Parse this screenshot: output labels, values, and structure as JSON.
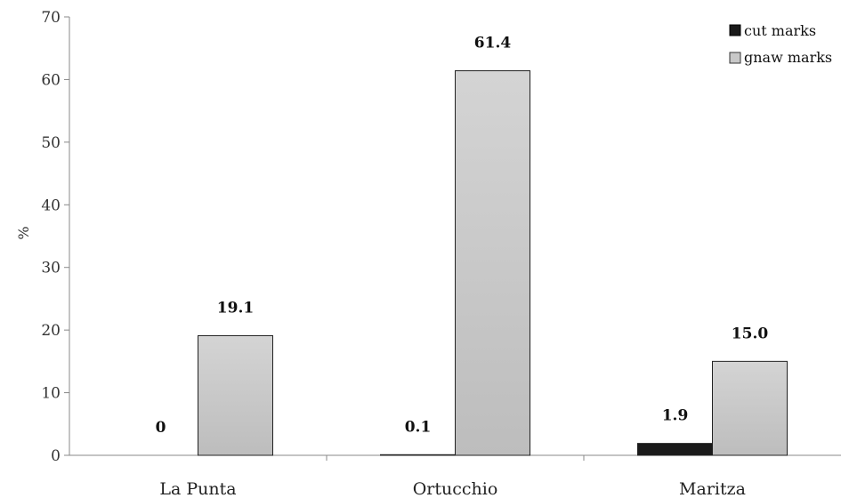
{
  "chart_data": {
    "type": "bar",
    "title": "",
    "xlabel": "",
    "ylabel": "%",
    "ylim": [
      0,
      70
    ],
    "yticks": [
      0,
      10,
      20,
      30,
      40,
      50,
      60,
      70
    ],
    "grid": false,
    "legend_position": "top-right",
    "categories": [
      "La Punta",
      "Ortucchio",
      "Maritza"
    ],
    "series": [
      {
        "name": "cut marks",
        "color": "#1a1a1a",
        "values": [
          0,
          0.1,
          1.9
        ],
        "labels": [
          "0",
          "0.1",
          "1.9"
        ]
      },
      {
        "name": "gnaw marks",
        "color": "#c8c8c8",
        "values": [
          19.1,
          61.4,
          15.0
        ],
        "labels": [
          "19.1",
          "61.4",
          "15.0"
        ]
      }
    ]
  }
}
